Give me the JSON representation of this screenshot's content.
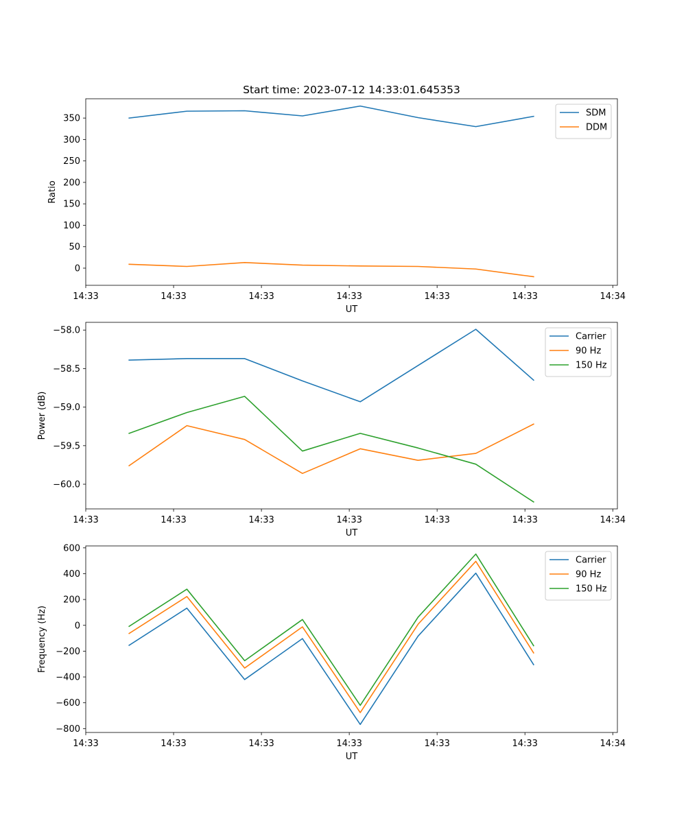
{
  "chart_data": [
    {
      "type": "line",
      "title": "Start time: 2023-07-12 14:33:01.645353",
      "xlabel": "UT",
      "ylabel": "Ratio",
      "x": [
        0,
        1,
        2,
        3,
        4,
        5,
        6,
        7
      ],
      "xlim": [
        -0.75,
        8.45
      ],
      "xticks": [
        {
          "pos": -0.75,
          "label": "14:33"
        },
        {
          "pos": 0.77,
          "label": "14:33"
        },
        {
          "pos": 2.29,
          "label": "14:33"
        },
        {
          "pos": 3.81,
          "label": "14:33"
        },
        {
          "pos": 5.33,
          "label": "14:33"
        },
        {
          "pos": 6.85,
          "label": "14:33"
        },
        {
          "pos": 8.37,
          "label": "14:34"
        }
      ],
      "ylim": [
        -40,
        395
      ],
      "yticks": [
        0,
        50,
        100,
        150,
        200,
        250,
        300,
        350
      ],
      "legend_position": "upper right",
      "series": [
        {
          "name": "SDM",
          "color": "#1f77b4",
          "values": [
            350,
            366,
            367,
            355,
            378,
            351,
            330,
            354
          ]
        },
        {
          "name": "DDM",
          "color": "#ff7f0e",
          "values": [
            9,
            4,
            13,
            7,
            5,
            4,
            -2,
            -20
          ]
        }
      ]
    },
    {
      "type": "line",
      "title": "",
      "xlabel": "UT",
      "ylabel": "Power (dB)",
      "x": [
        0,
        1,
        2,
        3,
        4,
        5,
        6,
        7
      ],
      "xlim": [
        -0.75,
        8.45
      ],
      "xticks": [
        {
          "pos": -0.75,
          "label": "14:33"
        },
        {
          "pos": 0.77,
          "label": "14:33"
        },
        {
          "pos": 2.29,
          "label": "14:33"
        },
        {
          "pos": 3.81,
          "label": "14:33"
        },
        {
          "pos": 5.33,
          "label": "14:33"
        },
        {
          "pos": 6.85,
          "label": "14:33"
        },
        {
          "pos": 8.37,
          "label": "14:34"
        }
      ],
      "ylim": [
        -60.32,
        -57.9
      ],
      "yticks": [
        -60.0,
        -59.5,
        -59.0,
        -58.5,
        -58.0
      ],
      "ytick_labels": [
        "−60.0",
        "−59.5",
        "−59.0",
        "−58.5",
        "−58.0"
      ],
      "legend_position": "upper right",
      "series": [
        {
          "name": "Carrier",
          "color": "#1f77b4",
          "values": [
            -58.39,
            -58.37,
            -58.37,
            -58.66,
            -58.93,
            -58.46,
            -57.99,
            -58.65
          ]
        },
        {
          "name": "90 Hz",
          "color": "#ff7f0e",
          "values": [
            -59.76,
            -59.24,
            -59.42,
            -59.86,
            -59.54,
            -59.69,
            -59.6,
            -59.22
          ]
        },
        {
          "name": "150 Hz",
          "color": "#2ca02c",
          "values": [
            -59.34,
            -59.07,
            -58.86,
            -59.57,
            -59.34,
            -59.53,
            -59.74,
            -60.23
          ]
        }
      ]
    },
    {
      "type": "line",
      "title": "",
      "xlabel": "UT",
      "ylabel": "Frequency (Hz)",
      "x": [
        0,
        1,
        2,
        3,
        4,
        5,
        6,
        7
      ],
      "xlim": [
        -0.75,
        8.45
      ],
      "xticks": [
        {
          "pos": -0.75,
          "label": "14:33"
        },
        {
          "pos": 0.77,
          "label": "14:33"
        },
        {
          "pos": 2.29,
          "label": "14:33"
        },
        {
          "pos": 3.81,
          "label": "14:33"
        },
        {
          "pos": 5.33,
          "label": "14:33"
        },
        {
          "pos": 6.85,
          "label": "14:33"
        },
        {
          "pos": 8.37,
          "label": "14:34"
        }
      ],
      "ylim": [
        -830,
        615
      ],
      "yticks": [
        -800,
        -600,
        -400,
        -200,
        0,
        200,
        400,
        600
      ],
      "ytick_labels": [
        "−800",
        "−600",
        "−400",
        "−200",
        "0",
        "200",
        "400",
        "600"
      ],
      "legend_position": "upper right",
      "series": [
        {
          "name": "Carrier",
          "color": "#1f77b4",
          "values": [
            -155,
            133,
            -420,
            -103,
            -768,
            -84,
            404,
            -305
          ]
        },
        {
          "name": "90 Hz",
          "color": "#ff7f0e",
          "values": [
            -63,
            223,
            -331,
            -12,
            -676,
            8,
            496,
            -214
          ]
        },
        {
          "name": "150 Hz",
          "color": "#2ca02c",
          "values": [
            -8,
            280,
            -274,
            45,
            -620,
            63,
            552,
            -158
          ]
        }
      ]
    }
  ]
}
